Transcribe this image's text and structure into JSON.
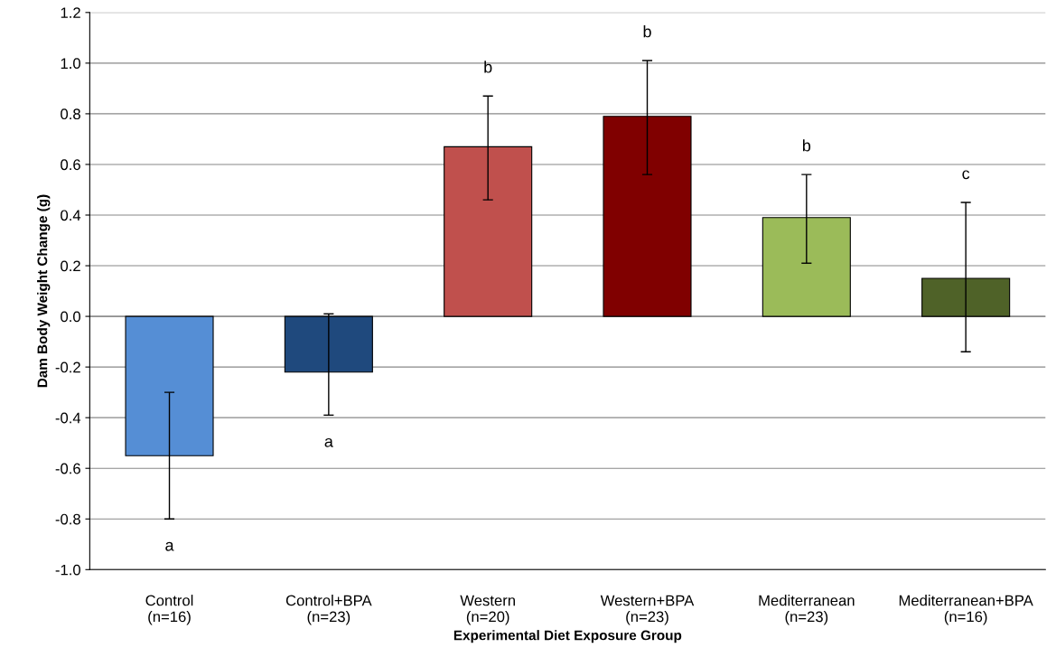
{
  "chart_data": {
    "type": "bar",
    "xlabel": "Experimental Diet Exposure Group",
    "ylabel": "Dam Body Weight Change (g)",
    "categories": [
      "Control\n(n=16)",
      "Control+BPA\n(n=23)",
      "Western\n(n=20)",
      "Western+BPA\n(n=23)",
      "Mediterranean\n(n=23)",
      "Mediterranean+BPA\n(n=16)"
    ],
    "values": [
      -0.55,
      -0.22,
      0.67,
      0.79,
      0.39,
      0.15
    ],
    "colors": [
      "#558ed5",
      "#1f497d",
      "#c0504d",
      "#800000",
      "#9bbb59",
      "#4f6228"
    ],
    "errors": [
      [
        -0.8,
        -0.3
      ],
      [
        -0.39,
        0.01
      ],
      [
        0.46,
        0.87
      ],
      [
        0.56,
        1.01
      ],
      [
        0.21,
        0.56
      ],
      [
        -0.14,
        0.45
      ]
    ],
    "ylim": [
      -1.0,
      1.2
    ],
    "yticks": [
      {
        "value": -1.0,
        "label": "-1.0"
      },
      {
        "value": -0.8,
        "label": "-0.8"
      },
      {
        "value": -0.6,
        "label": "-0.6"
      },
      {
        "value": -0.4,
        "label": "-0.4"
      },
      {
        "value": -0.2,
        "label": "-0.2"
      },
      {
        "value": 0.0,
        "label": "0.0"
      },
      {
        "value": 0.2,
        "label": "0.2"
      },
      {
        "value": 0.4,
        "label": "0.4"
      },
      {
        "value": 0.6,
        "label": "0.6"
      },
      {
        "value": 0.8,
        "label": "0.8"
      },
      {
        "value": 1.0,
        "label": "1.0"
      },
      {
        "value": 1.2,
        "label": "1.2"
      }
    ],
    "grid": "y",
    "annotations": [
      "a",
      "a",
      "b",
      "b",
      "b",
      "c"
    ]
  }
}
